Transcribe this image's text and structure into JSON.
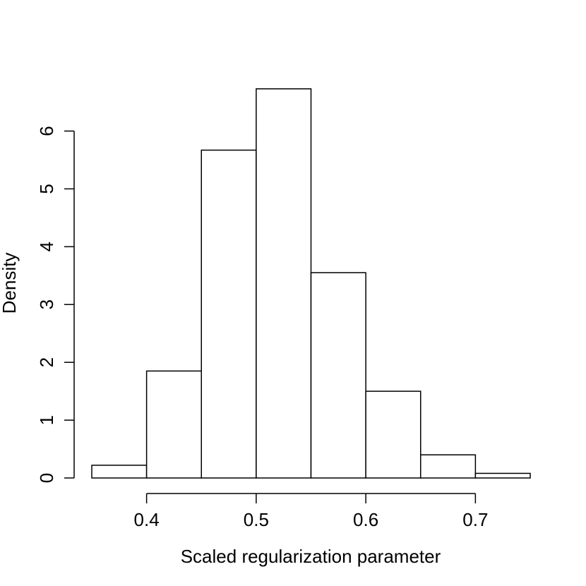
{
  "chart_data": {
    "type": "bar",
    "subtype": "histogram",
    "title": "",
    "xlabel": "Scaled regularization parameter",
    "ylabel": "Density",
    "bins": [
      {
        "start": 0.35,
        "end": 0.4,
        "density": 0.22
      },
      {
        "start": 0.4,
        "end": 0.45,
        "density": 1.85
      },
      {
        "start": 0.45,
        "end": 0.5,
        "density": 5.67
      },
      {
        "start": 0.5,
        "end": 0.55,
        "density": 6.73
      },
      {
        "start": 0.55,
        "end": 0.6,
        "density": 3.55
      },
      {
        "start": 0.6,
        "end": 0.65,
        "density": 1.5
      },
      {
        "start": 0.65,
        "end": 0.7,
        "density": 0.4
      },
      {
        "start": 0.7,
        "end": 0.75,
        "density": 0.08
      }
    ],
    "xticks": [
      0.4,
      0.5,
      0.6,
      0.7
    ],
    "xtick_labels": [
      "0.4",
      "0.5",
      "0.6",
      "0.7"
    ],
    "yticks": [
      0,
      1,
      2,
      3,
      4,
      5,
      6
    ],
    "ytick_labels": [
      "0",
      "1",
      "2",
      "3",
      "4",
      "5",
      "6"
    ],
    "xlim": [
      0.35,
      0.75
    ],
    "ylim": [
      0,
      6.73
    ],
    "grid": false,
    "legend": "none",
    "colors": {
      "bar_fill": "#ffffff",
      "bar_stroke": "#000000",
      "axis": "#000000"
    }
  }
}
